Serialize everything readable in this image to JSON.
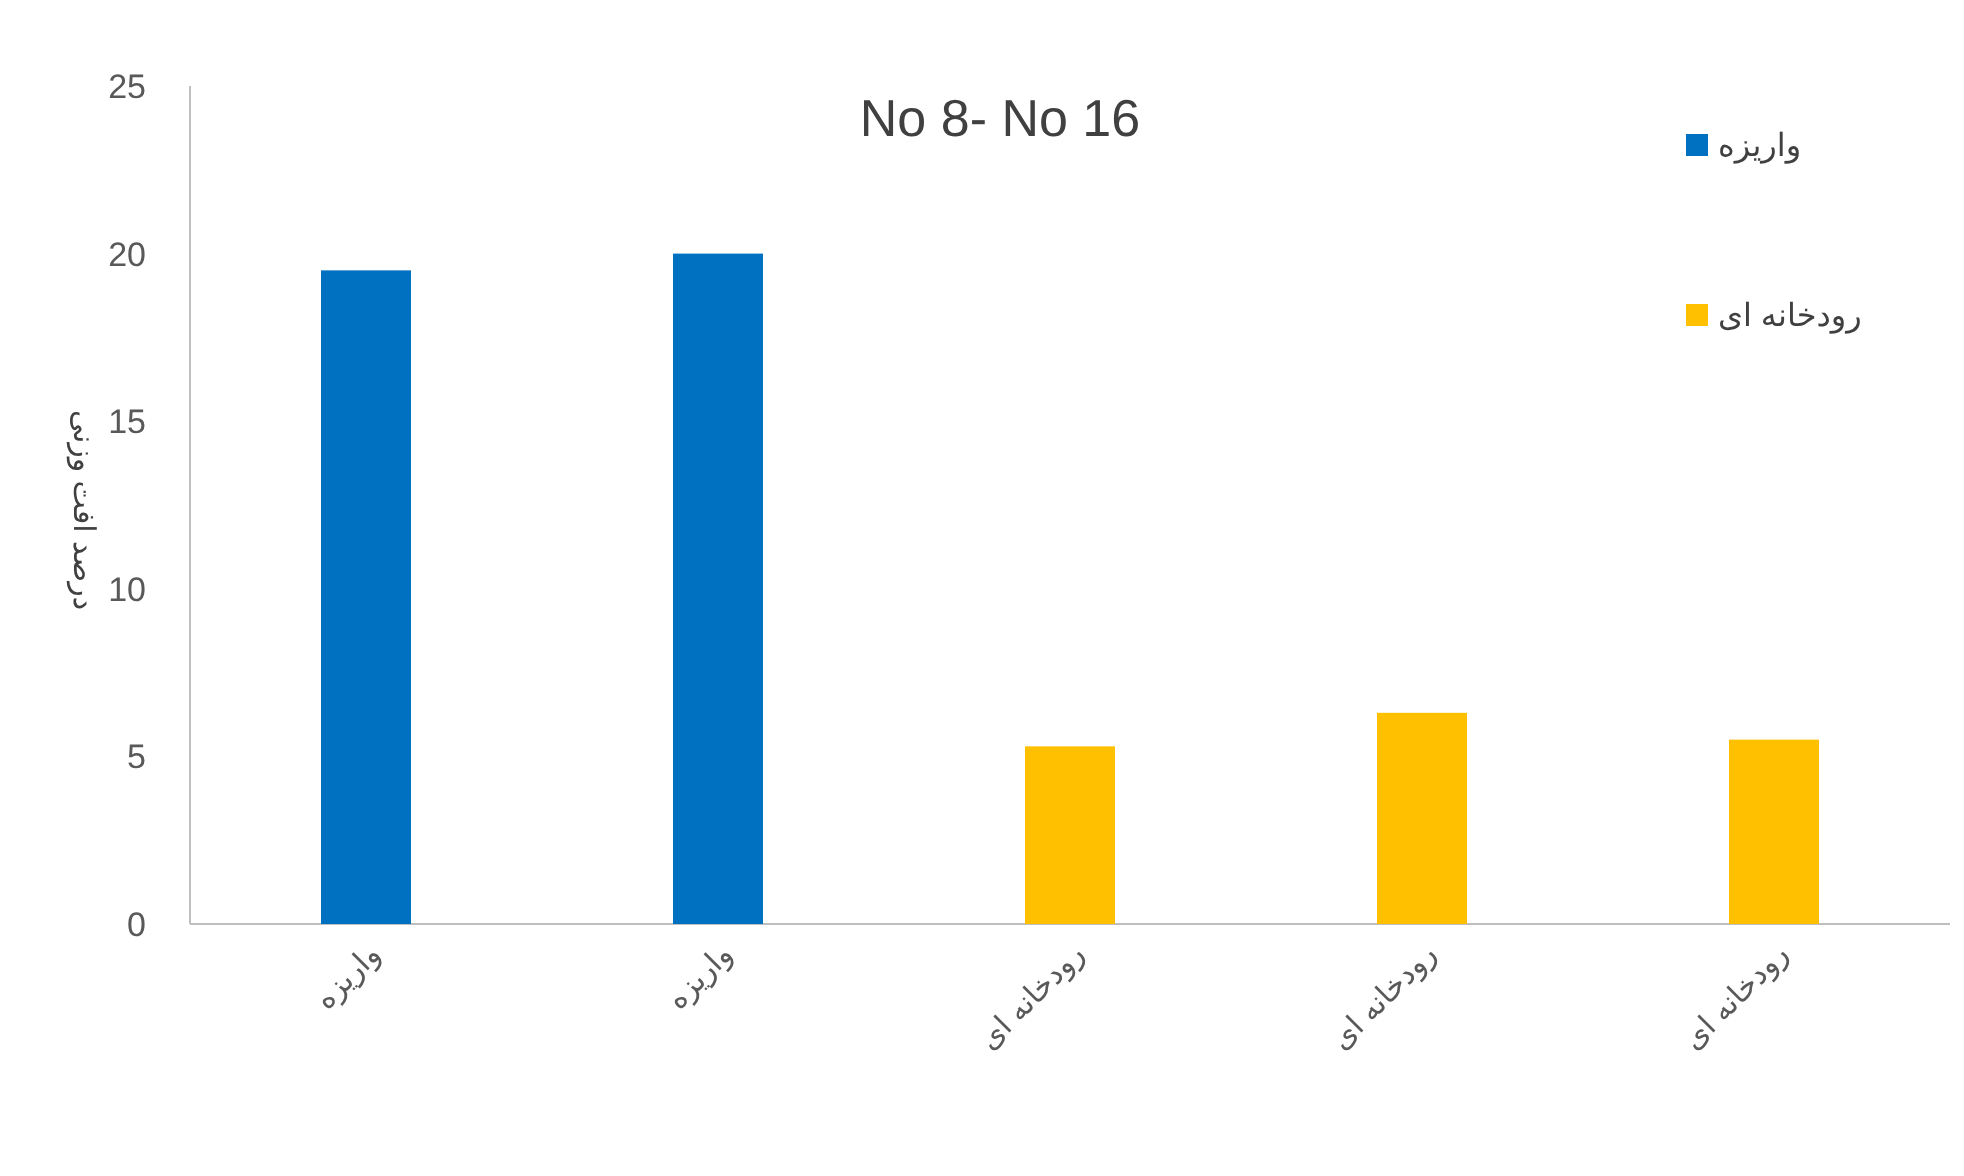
{
  "chart_data": {
    "type": "bar",
    "title": "No 8- No 16",
    "ylabel": "درصد افت وزنی",
    "categories": [
      "واریزه",
      "واریزه",
      "رودخانه ای",
      "رودخانه ای",
      "رودخانه ای"
    ],
    "series": [
      {
        "name": "واریزه",
        "color": "#0070c0",
        "values": [
          19.5,
          20.0,
          null,
          null,
          null
        ]
      },
      {
        "name": "رودخانه ای",
        "color": "#ffc000",
        "values": [
          null,
          null,
          5.3,
          6.3,
          5.5
        ]
      }
    ],
    "ylim": [
      0,
      25
    ],
    "yticks": [
      0,
      5,
      10,
      15,
      20,
      25
    ],
    "legend": "top right"
  }
}
